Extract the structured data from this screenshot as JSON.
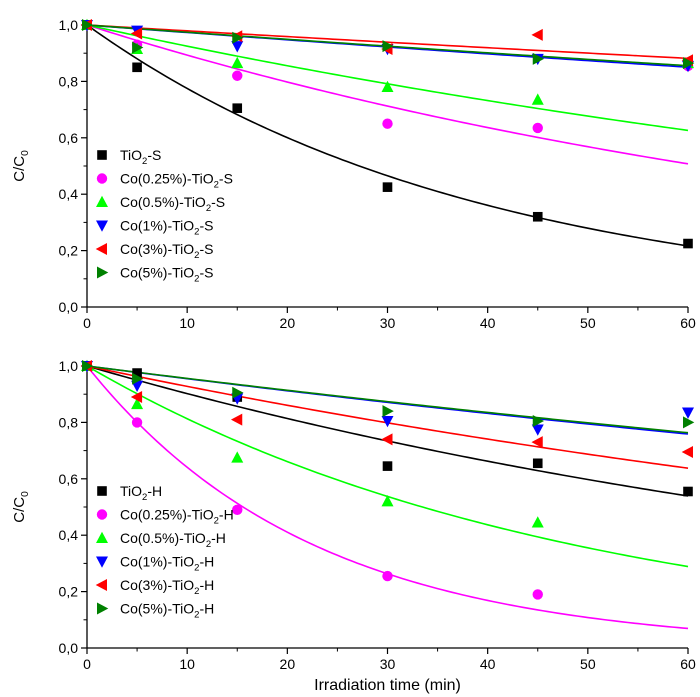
{
  "chart_data": [
    {
      "type": "scatter",
      "ylabel": "C/C",
      "ylabel_sub": "0",
      "xlabel": "",
      "xlim": [
        0,
        60
      ],
      "ylim": [
        0.0,
        1.0
      ],
      "x_ticks": [
        "0",
        "10",
        "20",
        "30",
        "40",
        "50",
        "60"
      ],
      "y_ticks": [
        "0,0",
        "0,2",
        "0,4",
        "0,6",
        "0,8",
        "1,0"
      ],
      "grid": false,
      "legend_position": "bottom-left",
      "x": [
        0,
        5,
        15,
        30,
        45,
        60
      ],
      "series": [
        {
          "name": "TiO",
          "name_sub": "2",
          "name_tail": "-S",
          "color": "#000000",
          "marker": "square",
          "values": [
            1.0,
            0.85,
            0.705,
            0.425,
            0.32,
            0.225
          ],
          "fit_k": 0.0255
        },
        {
          "name": "Co(0.25%)-TiO",
          "name_sub": "2",
          "name_tail": "-S",
          "color": "#ff00ff",
          "marker": "circle",
          "values": [
            1.0,
            0.93,
            0.82,
            0.65,
            0.635,
            0.855
          ],
          "fit_k": 0.0113
        },
        {
          "name": "Co(0.5%)-TiO",
          "name_sub": "2",
          "name_tail": "-S",
          "color": "#00ff00",
          "marker": "triangle-up",
          "values": [
            1.0,
            0.915,
            0.865,
            0.78,
            0.735,
            0.865
          ],
          "fit_k": 0.0078
        },
        {
          "name": "Co(1%)-TiO",
          "name_sub": "2",
          "name_tail": "-S",
          "color": "#0000ff",
          "marker": "triangle-down",
          "values": [
            1.0,
            0.98,
            0.925,
            0.915,
            0.88,
            0.855
          ],
          "fit_k": 0.0027
        },
        {
          "name": "Co(3%)-TiO",
          "name_sub": "2",
          "name_tail": "-S",
          "color": "#ff0000",
          "marker": "triangle-left",
          "values": [
            1.0,
            0.97,
            0.96,
            0.915,
            0.965,
            0.875
          ],
          "fit_k": 0.0021
        },
        {
          "name": "Co(5%)-TiO",
          "name_sub": "2",
          "name_tail": "-S",
          "color": "#008000",
          "marker": "triangle-right",
          "values": [
            1.0,
            0.92,
            0.955,
            0.925,
            0.88,
            0.865
          ],
          "fit_k": 0.0026
        }
      ]
    },
    {
      "type": "scatter",
      "ylabel": "C/C",
      "ylabel_sub": "0",
      "xlabel": "Irradiation time (min)",
      "xlim": [
        0,
        60
      ],
      "ylim": [
        0.0,
        1.0
      ],
      "x_ticks": [
        "0",
        "10",
        "20",
        "30",
        "40",
        "50",
        "60"
      ],
      "y_ticks": [
        "0,0",
        "0,2",
        "0,4",
        "0,6",
        "0,8",
        "1,0"
      ],
      "grid": false,
      "legend_position": "bottom-left",
      "x": [
        0,
        5,
        15,
        30,
        45,
        60
      ],
      "series": [
        {
          "name": "TiO",
          "name_sub": "2",
          "name_tail": "-H",
          "color": "#000000",
          "marker": "square",
          "values": [
            1.0,
            0.975,
            0.89,
            0.645,
            0.655,
            0.555
          ],
          "fit_k": 0.0103
        },
        {
          "name": "Co(0.25%)-TiO",
          "name_sub": "2",
          "name_tail": "-H",
          "color": "#ff00ff",
          "marker": "circle",
          "values": [
            1.0,
            0.8,
            0.49,
            0.255,
            0.19,
            null
          ],
          "fit_k": 0.0445
        },
        {
          "name": "Co(0.5%)-TiO",
          "name_sub": "2",
          "name_tail": "-H",
          "color": "#00ff00",
          "marker": "triangle-up",
          "values": [
            1.0,
            0.865,
            0.675,
            0.52,
            0.445,
            null
          ],
          "fit_k": 0.0207
        },
        {
          "name": "Co(1%)-TiO",
          "name_sub": "2",
          "name_tail": "-H",
          "color": "#0000ff",
          "marker": "triangle-down",
          "values": [
            1.0,
            0.93,
            0.885,
            0.805,
            0.775,
            0.835
          ],
          "fit_k": 0.0046
        },
        {
          "name": "Co(3%)-TiO",
          "name_sub": "2",
          "name_tail": "-H",
          "color": "#ff0000",
          "marker": "triangle-left",
          "values": [
            1.0,
            0.89,
            0.81,
            0.74,
            0.73,
            0.695
          ],
          "fit_k": 0.0075
        },
        {
          "name": "Co(5%)-TiO",
          "name_sub": "2",
          "name_tail": "-H",
          "color": "#008000",
          "marker": "triangle-right",
          "values": [
            1.0,
            0.955,
            0.905,
            0.84,
            0.805,
            0.8
          ],
          "fit_k": 0.0045
        }
      ]
    }
  ]
}
